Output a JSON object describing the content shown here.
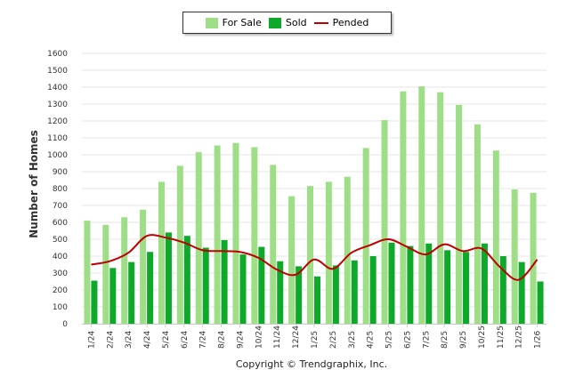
{
  "chart_data": {
    "type": "bar",
    "title": "",
    "xlabel": "",
    "ylabel": "Number of Homes",
    "ylim": [
      0,
      1600
    ],
    "yticks": [
      0,
      100,
      200,
      300,
      400,
      500,
      600,
      700,
      800,
      900,
      1000,
      1100,
      1200,
      1300,
      1400,
      1500,
      1600
    ],
    "categories": [
      "1/24",
      "2/24",
      "3/24",
      "4/24",
      "5/24",
      "6/24",
      "7/24",
      "8/24",
      "9/24",
      "10/24",
      "11/24",
      "12/24",
      "1/25",
      "2/25",
      "3/25",
      "4/25",
      "5/25",
      "6/25",
      "7/25",
      "8/25",
      "9/25",
      "10/25",
      "11/25",
      "12/25",
      "1/26"
    ],
    "series": [
      {
        "name": "For Sale",
        "type": "bar",
        "color": "#9ede87",
        "values": [
          610,
          585,
          630,
          675,
          840,
          935,
          1015,
          1055,
          1070,
          1045,
          940,
          755,
          815,
          840,
          870,
          1040,
          1205,
          1375,
          1405,
          1370,
          1295,
          1180,
          1025,
          795,
          775
        ]
      },
      {
        "name": "Sold",
        "type": "bar",
        "color": "#0ea82a",
        "values": [
          255,
          330,
          365,
          425,
          540,
          520,
          450,
          495,
          410,
          455,
          370,
          340,
          280,
          345,
          375,
          400,
          480,
          460,
          475,
          435,
          425,
          475,
          400,
          365,
          250
        ]
      },
      {
        "name": "Pended",
        "type": "line",
        "color": "#c00000",
        "values": [
          350,
          370,
          420,
          520,
          510,
          480,
          435,
          430,
          425,
          390,
          320,
          290,
          380,
          325,
          420,
          465,
          500,
          455,
          410,
          470,
          430,
          445,
          335,
          260,
          380
        ]
      }
    ],
    "grid": true,
    "legend": "top-center"
  },
  "footer": "Copyright © Trendgraphix, Inc."
}
